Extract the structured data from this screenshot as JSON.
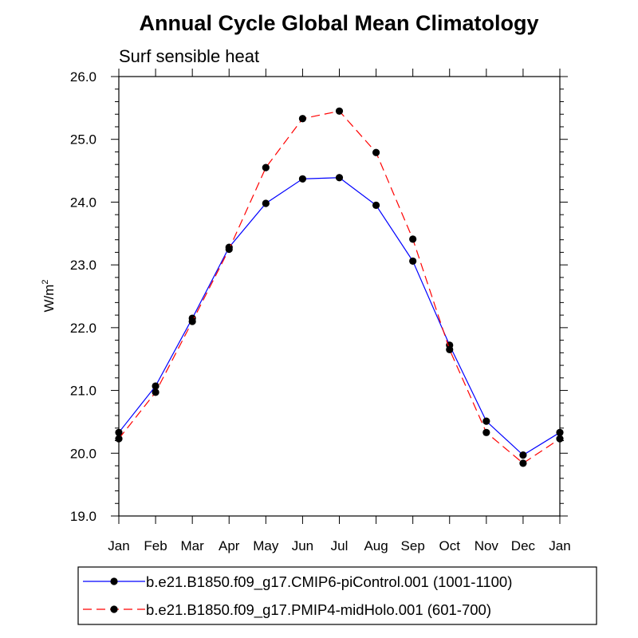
{
  "chart_data": {
    "type": "line",
    "title": "Annual Cycle Global Mean Climatology",
    "subtitle": "Surf sensible heat",
    "ylabel": "W/m",
    "ylabel_superscript": "2",
    "xlabel": "",
    "categories": [
      "Jan",
      "Feb",
      "Mar",
      "Apr",
      "May",
      "Jun",
      "Jul",
      "Aug",
      "Sep",
      "Oct",
      "Nov",
      "Dec",
      "Jan"
    ],
    "ylim": [
      19.0,
      26.0
    ],
    "yticks": [
      "19.0",
      "20.0",
      "21.0",
      "22.0",
      "23.0",
      "24.0",
      "25.0",
      "26.0"
    ],
    "grid": false,
    "legend_position": "bottom",
    "series": [
      {
        "name": "b.e21.B1850.f09_g17.CMIP6-piControl.001 (1001-1100)",
        "color": "#0000ff",
        "dash": "solid",
        "marker": "filled-circle",
        "values": [
          20.33,
          21.07,
          22.15,
          23.28,
          23.98,
          24.37,
          24.39,
          23.95,
          23.06,
          21.72,
          20.51,
          19.97,
          20.33
        ]
      },
      {
        "name": "b.e21.B1850.f09_g17.PMIP4-midHolo.001 (601-700)",
        "color": "#ff0000",
        "dash": "dashed",
        "marker": "filled-circle",
        "values": [
          20.23,
          20.97,
          22.1,
          23.25,
          24.55,
          25.33,
          25.45,
          24.79,
          23.41,
          21.65,
          20.33,
          19.84,
          20.23
        ]
      }
    ]
  }
}
